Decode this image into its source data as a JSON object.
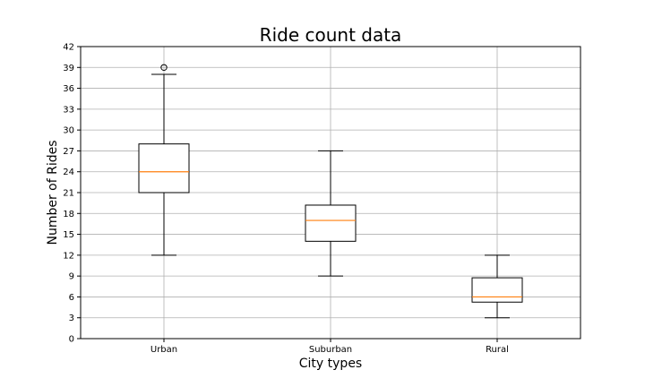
{
  "chart_data": {
    "type": "box",
    "title": "Ride count data",
    "xlabel": "City types",
    "ylabel": "Number of Rides",
    "categories": [
      "Urban",
      "Suburban",
      "Rural"
    ],
    "ylim": [
      0,
      42
    ],
    "yticks": [
      0,
      3,
      6,
      9,
      12,
      15,
      18,
      21,
      24,
      27,
      30,
      33,
      36,
      39,
      42
    ],
    "grid": true,
    "boxes": [
      {
        "category": "Urban",
        "whisker_low": 12,
        "q1": 21,
        "median": 24,
        "q3": 28,
        "whisker_high": 38,
        "outliers": [
          39
        ]
      },
      {
        "category": "Suburban",
        "whisker_low": 9,
        "q1": 14,
        "median": 17,
        "q3": 19.2,
        "whisker_high": 27,
        "outliers": []
      },
      {
        "category": "Rural",
        "whisker_low": 3,
        "q1": 5.25,
        "median": 6,
        "q3": 8.75,
        "whisker_high": 12,
        "outliers": []
      }
    ],
    "colors": {
      "box": "#000000",
      "median": "#ff7f0e",
      "grid": "#b0b0b0"
    }
  }
}
